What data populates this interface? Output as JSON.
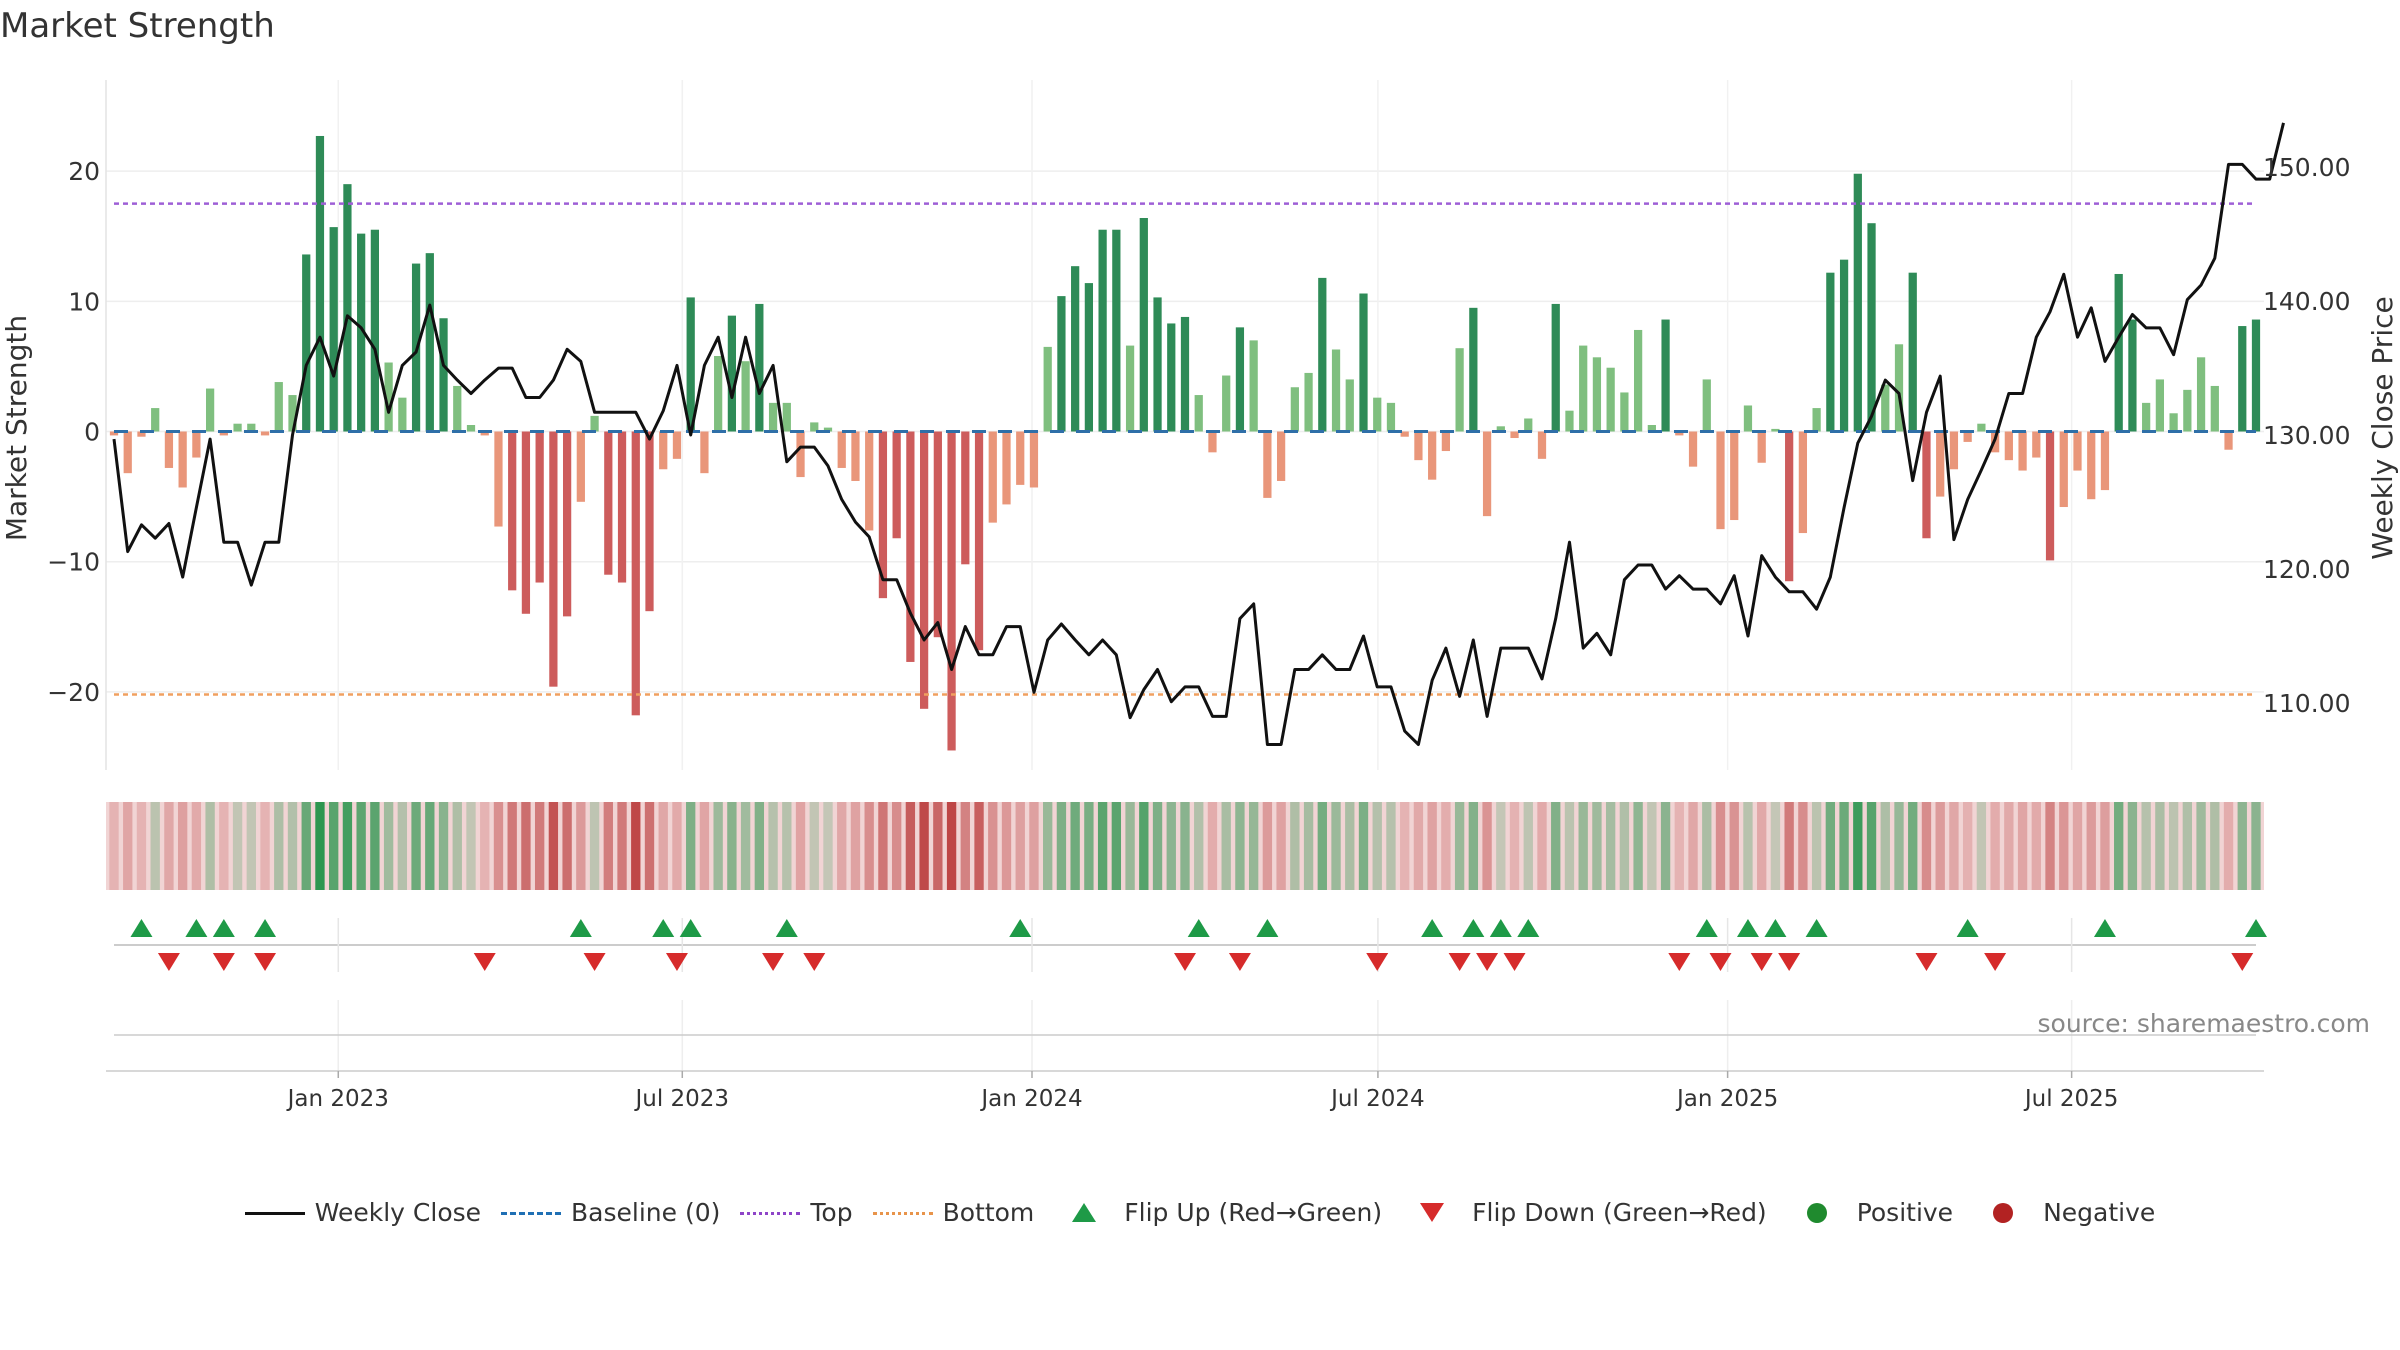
{
  "chart_data": {
    "type": "bar",
    "title": "Market Strength",
    "source": "source: sharemaestro.com",
    "ylabel_left": "Market Strength",
    "ylabel_right": "Weekly Close Price",
    "left_axis": {
      "ylim": [
        -26,
        27
      ],
      "ticks": [
        20,
        10,
        0,
        -10,
        -20
      ],
      "tick_labels": [
        "20",
        "10",
        "0",
        "−10",
        "−20"
      ]
    },
    "right_axis": {
      "ylim": [
        105,
        156.5
      ],
      "ticks": [
        150,
        140,
        130,
        120,
        110
      ],
      "tick_labels": [
        "150.00",
        "140.00",
        "130.00",
        "120.00",
        "110.00"
      ]
    },
    "x_axis": {
      "start": "2022-09-05",
      "end": "2025-10-06",
      "ticks": [
        "2023-01-01",
        "2023-07-01",
        "2024-01-01",
        "2024-07-01",
        "2025-01-01",
        "2025-07-01"
      ],
      "tick_labels": [
        "Jan 2023",
        "Jul 2023",
        "Jan 2024",
        "Jul 2024",
        "Jan 2025",
        "Jul 2025"
      ]
    },
    "top_level": 17.5,
    "bottom_level": -20.2,
    "baseline": 0,
    "bars": [
      -0.3,
      -3.2,
      -0.4,
      1.8,
      -2.8,
      -4.3,
      -2.0,
      3.3,
      -0.3,
      0.6,
      0.6,
      -0.3,
      3.8,
      2.8,
      13.6,
      22.7,
      15.7,
      19.0,
      15.2,
      15.5,
      5.3,
      2.6,
      12.9,
      13.7,
      8.7,
      3.5,
      0.5,
      -0.3,
      -7.3,
      -12.2,
      -14.0,
      -11.6,
      -19.6,
      -14.2,
      -5.4,
      1.2,
      -11.0,
      -11.6,
      -21.8,
      -13.8,
      -2.9,
      -2.1,
      10.3,
      -3.2,
      5.8,
      8.9,
      5.4,
      9.8,
      2.2,
      2.2,
      -3.5,
      0.7,
      0.3,
      -2.8,
      -3.8,
      -7.6,
      -12.8,
      -8.2,
      -17.7,
      -21.3,
      -15.8,
      -24.5,
      -10.2,
      -16.8,
      -7.0,
      -5.6,
      -4.1,
      -4.3,
      6.5,
      10.4,
      12.7,
      11.4,
      15.5,
      15.5,
      6.6,
      16.4,
      10.3,
      8.3,
      8.8,
      2.8,
      -1.6,
      4.3,
      8.0,
      7.0,
      -5.1,
      -3.8,
      3.4,
      4.5,
      11.8,
      6.3,
      4.0,
      10.6,
      2.6,
      2.2,
      -0.4,
      -2.2,
      -3.7,
      -1.5,
      6.4,
      9.5,
      -6.5,
      0.4,
      -0.5,
      1.0,
      -2.1,
      9.8,
      1.6,
      6.6,
      5.7,
      4.9,
      3.0,
      7.8,
      0.5,
      8.6,
      -0.3,
      -2.7,
      4.0,
      -7.5,
      -6.8,
      2.0,
      -2.4,
      0.2,
      -11.5,
      -7.8,
      1.8,
      12.2,
      13.2,
      19.8,
      16.0,
      3.6,
      6.7,
      12.2,
      -8.2,
      -5.0,
      -2.9,
      -0.8,
      0.6,
      -1.6,
      -2.2,
      -3.0,
      -2.0,
      -9.9,
      -5.8,
      -3.0,
      -5.2,
      -4.5,
      12.1,
      8.6,
      2.2,
      4.0,
      1.4,
      3.2,
      5.7,
      3.5,
      -1.4,
      8.1,
      8.6
    ],
    "series": [
      {
        "name": "Weekly Close",
        "color": "#111111",
        "values": [
          129.7,
          121.3,
          123.3,
          122.3,
          123.4,
          119.4,
          124.6,
          129.7,
          122.0,
          122.0,
          118.8,
          122.0,
          122.0,
          130.0,
          135.2,
          137.3,
          134.4,
          138.9,
          138.0,
          136.4,
          131.7,
          135.2,
          136.2,
          139.7,
          135.2,
          134.1,
          133.1,
          134.1,
          135.0,
          135.0,
          132.8,
          132.8,
          134.1,
          136.4,
          135.5,
          131.7,
          131.7,
          131.7,
          131.7,
          129.7,
          131.8,
          135.2,
          130.0,
          135.2,
          137.3,
          132.8,
          137.3,
          133.1,
          135.2,
          128.0,
          129.1,
          129.1,
          127.7,
          125.2,
          123.5,
          122.4,
          119.2,
          119.2,
          116.7,
          114.7,
          116.0,
          112.5,
          115.7,
          113.6,
          113.6,
          115.7,
          115.7,
          110.8,
          114.7,
          115.9,
          114.7,
          113.6,
          114.7,
          113.6,
          108.9,
          111.0,
          112.5,
          110.1,
          111.2,
          111.2,
          109.0,
          109.0,
          116.3,
          117.4,
          106.9,
          106.9,
          112.5,
          112.5,
          113.6,
          112.5,
          112.5,
          115.0,
          111.2,
          111.2,
          107.9,
          106.9,
          111.7,
          114.1,
          110.5,
          114.7,
          109.0,
          114.1,
          114.1,
          114.1,
          111.8,
          116.3,
          122.0,
          114.1,
          115.2,
          113.6,
          119.2,
          120.3,
          120.3,
          118.5,
          119.5,
          118.5,
          118.5,
          117.4,
          119.5,
          115.0,
          121.0,
          119.4,
          118.3,
          118.3,
          117.0,
          119.4,
          124.6,
          129.4,
          131.4,
          134.1,
          133.1,
          126.6,
          131.7,
          134.4,
          122.2,
          125.2,
          127.4,
          129.7,
          133.1,
          133.1,
          137.3,
          139.2,
          142.0,
          137.3,
          139.5,
          135.5,
          137.3,
          139.0,
          138.0,
          138.0,
          136.0,
          140.1,
          141.2,
          143.2,
          150.2,
          150.2,
          149.1,
          149.1,
          153.3
        ]
      }
    ],
    "strip": {
      "bg": "#f1d4d4"
    },
    "flip_up_weeks": [
      2,
      6,
      8,
      11,
      34,
      40,
      42,
      49,
      66,
      79,
      84,
      96,
      99,
      101,
      103,
      116,
      119,
      121,
      124,
      135,
      145,
      156
    ],
    "flip_down_weeks": [
      4,
      8,
      11,
      27,
      35,
      41,
      48,
      51,
      78,
      82,
      92,
      98,
      100,
      102,
      114,
      117,
      120,
      122,
      132,
      137,
      155
    ],
    "colors": {
      "pos_strong": "#2e8b57",
      "pos_weak": "#7fbf7f",
      "neg_strong": "#cd5c5c",
      "neg_weak": "#e9967a",
      "top": "#9e5fd6",
      "bottom": "#f0a060",
      "baseline": "#2f6fa8"
    },
    "legend": [
      "Weekly Close",
      "Baseline (0)",
      "Top",
      "Bottom",
      "Flip Up (Red→Green)",
      "Flip Down (Green→Red)",
      "Positive",
      "Negative"
    ]
  }
}
